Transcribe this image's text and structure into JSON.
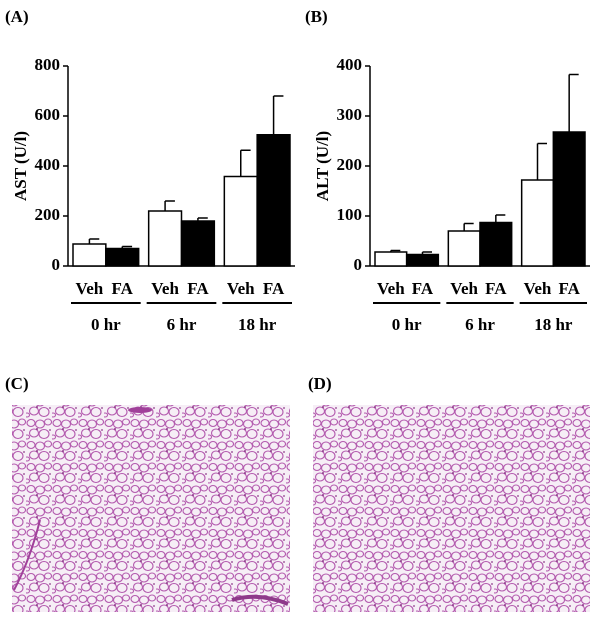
{
  "chart_data": [
    {
      "type": "bar",
      "panel": "(A)",
      "ylabel": "AST (U/l)",
      "categories": [
        "0 hr",
        "6 hr",
        "18 hr"
      ],
      "series": [
        {
          "name": "Veh",
          "color": "#ffffff",
          "values": [
            88,
            220,
            358
          ],
          "errors": [
            20,
            40,
            105
          ]
        },
        {
          "name": "FA",
          "color": "#000000",
          "values": [
            70,
            180,
            525
          ],
          "errors": [
            8,
            12,
            155
          ]
        }
      ],
      "ylim": [
        0,
        800
      ],
      "yticks": [
        0,
        200,
        400,
        600,
        800
      ]
    },
    {
      "type": "bar",
      "panel": "(B)",
      "ylabel": "ALT (U/l)",
      "categories": [
        "0 hr",
        "6 hr",
        "18 hr"
      ],
      "series": [
        {
          "name": "Veh",
          "color": "#ffffff",
          "values": [
            28,
            70,
            172
          ],
          "errors": [
            3,
            15,
            73
          ]
        },
        {
          "name": "FA",
          "color": "#000000",
          "values": [
            23,
            87,
            268
          ],
          "errors": [
            5,
            15,
            115
          ]
        }
      ],
      "ylim": [
        0,
        400
      ],
      "yticks": [
        0,
        100,
        200,
        300,
        400
      ]
    }
  ],
  "images": [
    {
      "label": "(C)"
    },
    {
      "label": "(D)"
    }
  ]
}
